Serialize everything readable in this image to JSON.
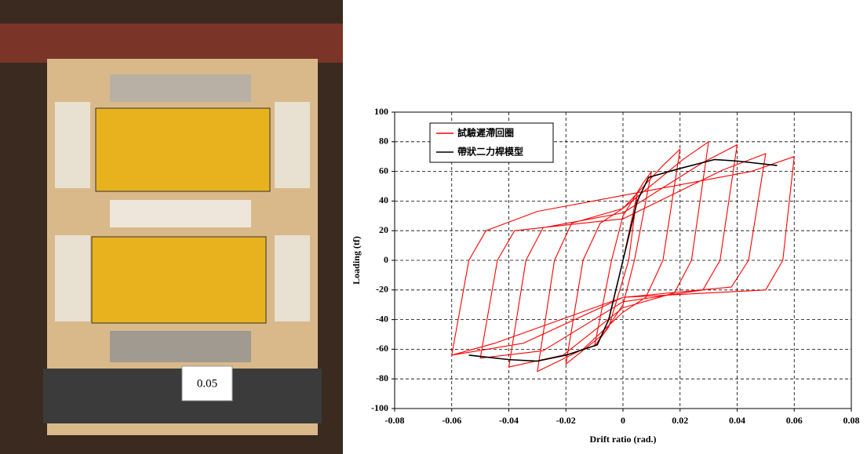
{
  "photo": {
    "label": "0.05"
  },
  "chart_data": {
    "type": "line",
    "xlabel": "Drift ratio (rad.)",
    "ylabel": "Loading (tf)",
    "xlim": [
      -0.08,
      0.08
    ],
    "xticks": [
      -0.08,
      -0.06,
      -0.04,
      -0.02,
      0,
      0.02,
      0.04,
      0.06,
      0.08
    ],
    "ylim": [
      -100,
      100
    ],
    "yticks": [
      -100,
      -80,
      -60,
      -40,
      -20,
      0,
      20,
      40,
      60,
      80,
      100
    ],
    "grid": true,
    "legend": "upper left",
    "series": [
      {
        "name": "試驗遲滯回圈",
        "color": "#ff0000",
        "x": [
          0,
          0.005,
          0.002,
          -0.005,
          -0.01,
          -0.004,
          0,
          0.007,
          0.01,
          0.004,
          0,
          -0.007,
          -0.02,
          -0.014,
          -0.008,
          0,
          0.014,
          0.02,
          0.014,
          0.008,
          0,
          -0.014,
          -0.03,
          -0.024,
          -0.018,
          0,
          0.021,
          0.03,
          0.024,
          0.018,
          0,
          -0.021,
          -0.04,
          -0.034,
          -0.028,
          0,
          0.028,
          0.04,
          0.034,
          0.028,
          0,
          -0.028,
          -0.05,
          -0.044,
          -0.038,
          0,
          0.035,
          0.05,
          0.044,
          0.038,
          0,
          -0.035,
          -0.06,
          -0.054,
          -0.048,
          -0.03,
          0.045,
          0.06,
          0.056,
          0.05,
          0,
          -0.045,
          -0.06
        ],
        "values": [
          0,
          45,
          0,
          -45,
          -58,
          0,
          30,
          52,
          60,
          0,
          -30,
          -50,
          -70,
          0,
          25,
          35,
          64,
          75,
          0,
          -25,
          -35,
          -60,
          -75,
          0,
          25,
          35,
          68,
          80,
          0,
          -22,
          -32,
          -64,
          -72,
          0,
          22,
          32,
          66,
          78,
          0,
          -20,
          -28,
          -61,
          -66,
          0,
          20,
          28,
          61,
          72,
          0,
          -18,
          -25,
          -56,
          -64,
          0,
          20,
          33,
          60,
          70,
          0,
          -20,
          -25,
          -56,
          -64
        ]
      },
      {
        "name": "帶狀二力桿模型",
        "color": "#000000",
        "x": [
          -0.054,
          -0.04,
          -0.03,
          -0.02,
          -0.009,
          -0.005,
          0,
          0.005,
          0.009,
          0.02,
          0.032,
          0.04,
          0.054
        ],
        "values": [
          -64,
          -67,
          -68,
          -64,
          -57,
          -40,
          0,
          40,
          56,
          62,
          68,
          67,
          64
        ]
      }
    ]
  }
}
